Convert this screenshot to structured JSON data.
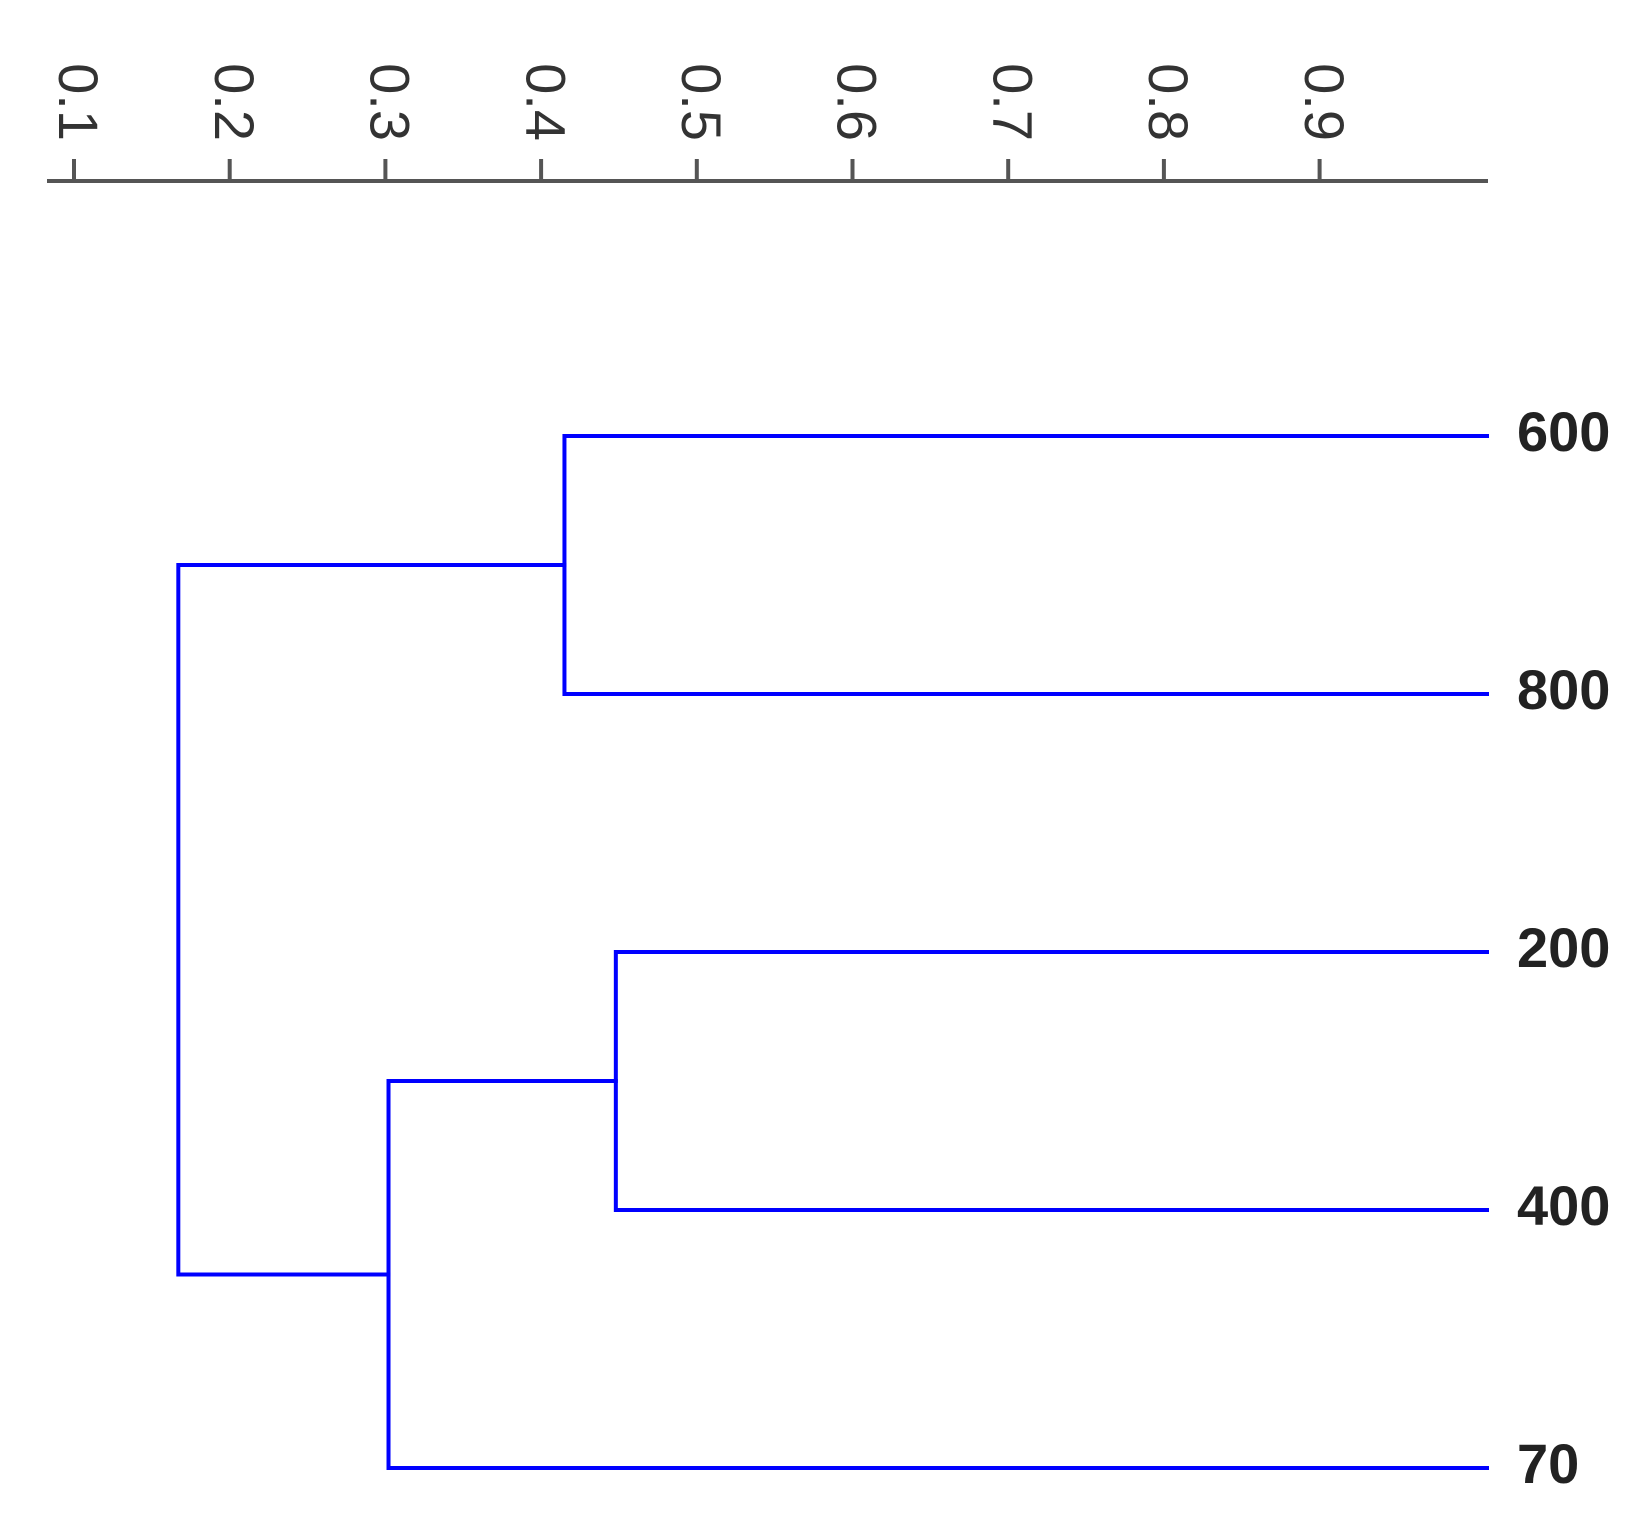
{
  "chart_data": {
    "type": "dendrogram",
    "orientation": "horizontal",
    "axis": {
      "position": "top",
      "range": [
        0.08,
        1.0
      ],
      "ticks": [
        0.1,
        0.2,
        0.3,
        0.4,
        0.5,
        0.6,
        0.7,
        0.8,
        0.9
      ],
      "tick_labels": [
        "0.1",
        "0.2",
        "0.3",
        "0.4",
        "0.5",
        "0.6",
        "0.7",
        "0.8",
        "0.9"
      ],
      "tick_label_rotation": 90
    },
    "leaves": [
      "600",
      "800",
      "200",
      "400",
      "70"
    ],
    "merges": [
      {
        "children": [
          "600",
          "800"
        ],
        "similarity": 0.415
      },
      {
        "children": [
          "200",
          "400"
        ],
        "similarity": 0.448
      },
      {
        "children": [
          "200+400",
          "70"
        ],
        "similarity": 0.302
      },
      {
        "children": [
          "600+800",
          "200+400+70"
        ],
        "similarity": 0.167
      }
    ],
    "leaf_end": 1.0
  },
  "colors": {
    "branch": "#0000ff",
    "axis": "#555555",
    "text": "#222222",
    "background": "#ffffff"
  }
}
